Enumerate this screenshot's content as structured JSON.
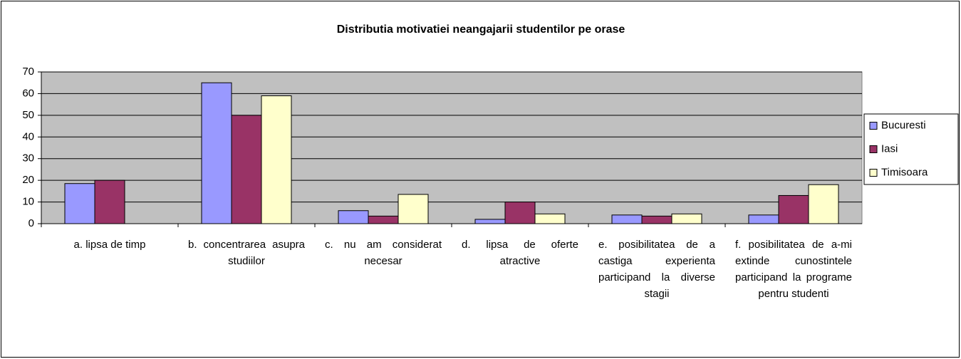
{
  "chart_data": {
    "type": "bar",
    "title": "Distributia motivatiei neangajarii studentilor pe orase",
    "categories": [
      "a. lipsa de timp",
      "b. concentrarea asupra studiilor",
      "c. nu am considerat necesar",
      "d. lipsa de oferte atractive",
      "e. posibilitatea de a castiga experienta participand la diverse stagii",
      "f. posibilitatea de a-mi extinde cunostintele participand la programe pentru studenti"
    ],
    "series": [
      {
        "name": "Bucuresti",
        "color": "#9999ff",
        "values": [
          18.5,
          65,
          6,
          2,
          4,
          4
        ]
      },
      {
        "name": "Iasi",
        "color": "#993366",
        "values": [
          20,
          50,
          3.5,
          10,
          3.5,
          13
        ]
      },
      {
        "name": "Timisoara",
        "color": "#ffffcc",
        "values": [
          0,
          59,
          13.5,
          4.5,
          4.5,
          18
        ]
      }
    ],
    "ylim": [
      0,
      70
    ],
    "yticks": [
      0,
      10,
      20,
      30,
      40,
      50,
      60,
      70
    ],
    "grid": true,
    "legend": "right"
  }
}
